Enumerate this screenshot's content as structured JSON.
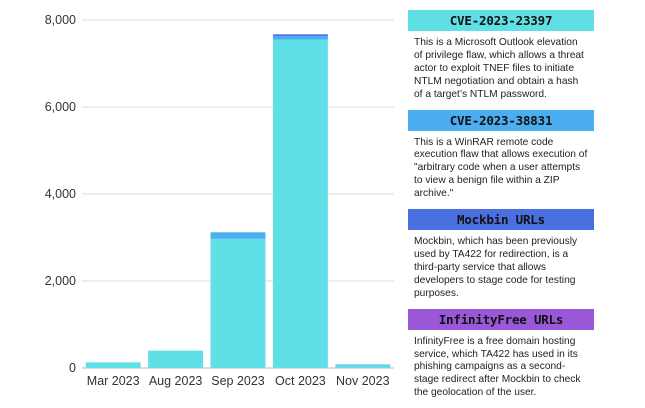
{
  "chart_data": {
    "type": "bar",
    "stacked": true,
    "categories": [
      "Mar 2023",
      "Aug 2023",
      "Sep 2023",
      "Oct 2023",
      "Nov 2023"
    ],
    "series": [
      {
        "name": "CVE-2023-23397",
        "color": "#5fe0e6",
        "values": [
          130,
          400,
          2970,
          7550,
          60
        ]
      },
      {
        "name": "CVE-2023-38831",
        "color": "#4aaef0",
        "values": [
          0,
          0,
          150,
          80,
          20
        ]
      },
      {
        "name": "Mockbin URLs",
        "color": "#4a6fe0",
        "values": [
          0,
          0,
          0,
          40,
          0
        ]
      }
    ],
    "ylim": [
      0,
      8000
    ],
    "yticks": [
      "0",
      "2,000",
      "4,000",
      "6,000",
      "8,000"
    ],
    "ytick_values": [
      0,
      2000,
      4000,
      6000,
      8000
    ],
    "grid": true,
    "legend_position": "right"
  },
  "legend": [
    {
      "title": "CVE-2023-23397",
      "color": "#5fe0e6",
      "text": "This is a Microsoft Outlook elevation of privilege flaw, which allows a threat actor to exploit TNEF files to initiate NTLM negotiation and obtain a hash of a target’s NTLM password."
    },
    {
      "title": "CVE-2023-38831",
      "color": "#4aaef0",
      "text": "This is a WinRAR remote code execution flaw that allows execution of \"arbitrary code when a user attempts to view a benign file within a ZIP archive.\""
    },
    {
      "title": "Mockbin URLs",
      "color": "#4a6fe0",
      "text": "Mockbin, which has been previously used by TA422 for redirection, is a third-party service that allows developers to stage code for testing purposes."
    },
    {
      "title": "InfinityFree URLs",
      "color": "#9a58d8",
      "text": "InfinityFree is a free domain hosting service, which TA422 has used in its phishing campaigns as a second-stage redirect after Mockbin to check the geolocation of the user."
    }
  ]
}
